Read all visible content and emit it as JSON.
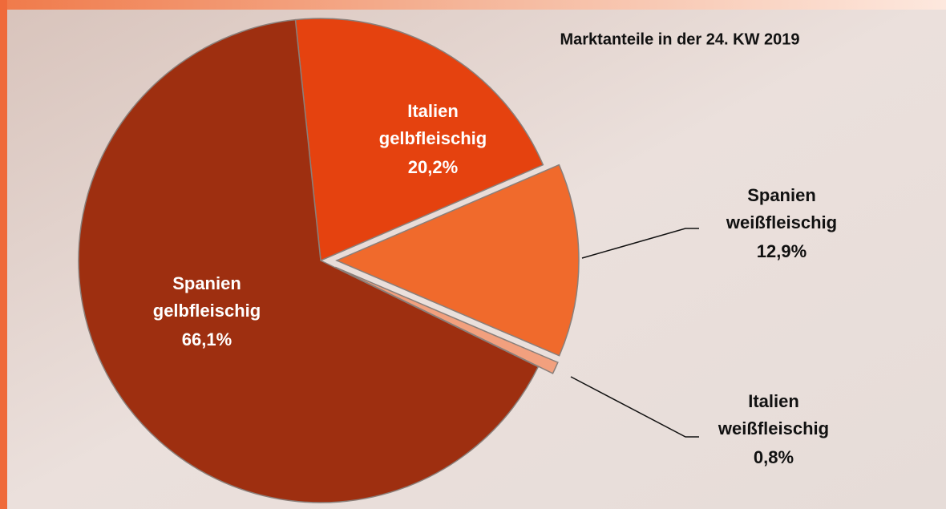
{
  "chart_data": {
    "type": "pie",
    "title": "Marktanteile in der 24. KW 2019",
    "categories": [
      "Italien gelbfleischig",
      "Spanien weißfleischig",
      "Italien weißfleischig",
      "Spanien gelbfleischig"
    ],
    "values": [
      20.2,
      12.9,
      0.8,
      66.1
    ],
    "value_labels": [
      "20,2%",
      "12,9%",
      "0,8%",
      "66,1%"
    ],
    "colors": [
      "#e5420f",
      "#f06a2c",
      "#f2a07e",
      "#9e2f10"
    ],
    "exploded": [
      false,
      true,
      true,
      false
    ]
  }
}
